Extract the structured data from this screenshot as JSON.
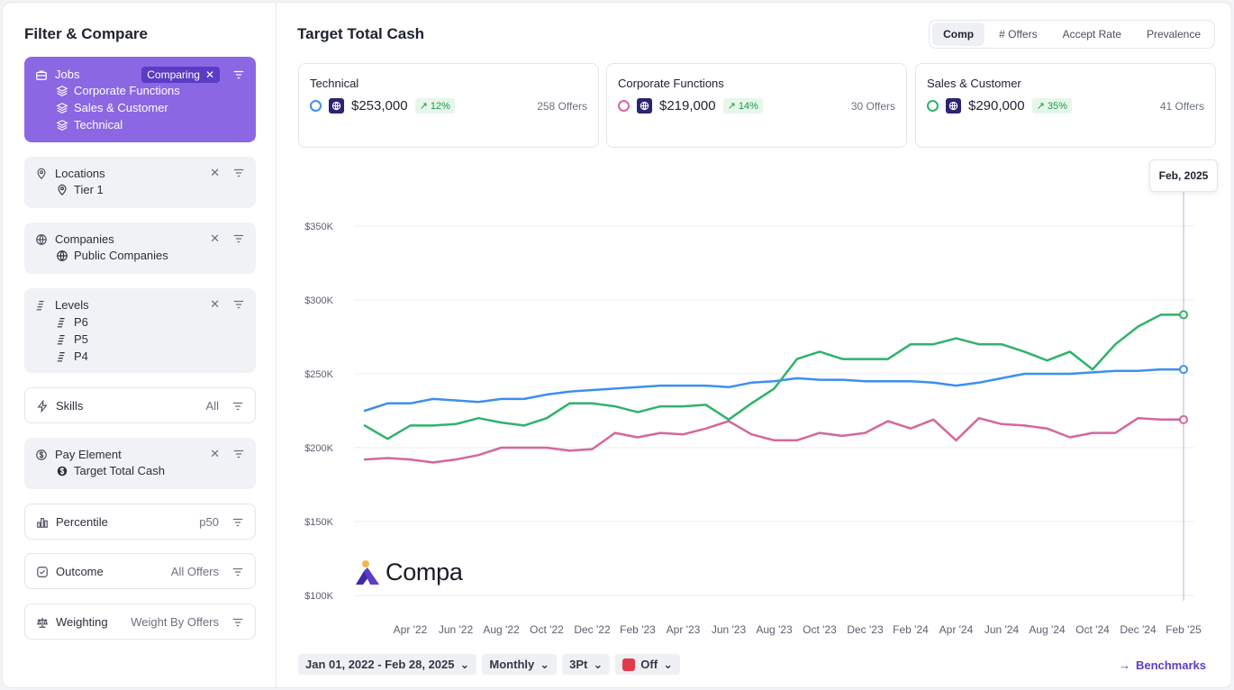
{
  "sidebar": {
    "title": "Filter & Compare",
    "jobs": {
      "label": "Jobs",
      "chip": "Comparing",
      "items": [
        "Corporate Functions",
        "Sales & Customer",
        "Technical"
      ]
    },
    "locations": {
      "label": "Locations",
      "items": [
        "Tier 1"
      ]
    },
    "companies": {
      "label": "Companies",
      "items": [
        "Public Companies"
      ]
    },
    "levels": {
      "label": "Levels",
      "items": [
        "P6",
        "P5",
        "P4"
      ]
    },
    "skills": {
      "label": "Skills",
      "value": "All"
    },
    "pay_element": {
      "label": "Pay Element",
      "items": [
        "Target Total Cash"
      ]
    },
    "percentile": {
      "label": "Percentile",
      "value": "p50"
    },
    "outcome": {
      "label": "Outcome",
      "value": "All Offers"
    },
    "weighting": {
      "label": "Weighting",
      "value": "Weight By Offers"
    }
  },
  "main": {
    "title": "Target Total Cash",
    "tabs": [
      "Comp",
      "# Offers",
      "Accept Rate",
      "Prevalence"
    ],
    "selected_tab": "Comp",
    "cards": [
      {
        "name": "Technical",
        "amount": "$253,000",
        "change": "↗ 12%",
        "offers": "258 Offers",
        "color": "#3c8ff0"
      },
      {
        "name": "Corporate Functions",
        "amount": "$219,000",
        "change": "↗ 14%",
        "offers": "30 Offers",
        "color": "#d5679b"
      },
      {
        "name": "Sales & Customer",
        "amount": "$290,000",
        "change": "↗ 35%",
        "offers": "41 Offers",
        "color": "#2fb36a"
      }
    ],
    "tooltip": "Feb, 2025",
    "logo": "Compa",
    "toolbar": {
      "date_range": "Jan 01, 2022 - Feb 28, 2025",
      "interval": "Monthly",
      "smoothing": "3Pt",
      "toggle": "Off"
    },
    "benchmarks_link": "Benchmarks"
  },
  "chart_data": {
    "type": "line",
    "ylim": [
      100000,
      350000
    ],
    "yticks": [
      "$100K",
      "$150K",
      "$200K",
      "$250K",
      "$300K",
      "$350K"
    ],
    "xticks": [
      "Apr '22",
      "Jun '22",
      "Aug '22",
      "Oct '22",
      "Dec '22",
      "Feb '23",
      "Apr '23",
      "Jun '23",
      "Aug '23",
      "Oct '23",
      "Dec '23",
      "Feb '24",
      "Apr '24",
      "Jun '24",
      "Aug '24",
      "Oct '24",
      "Dec '24",
      "Feb '25"
    ],
    "x": [
      "2022-02",
      "2022-03",
      "2022-04",
      "2022-05",
      "2022-06",
      "2022-07",
      "2022-08",
      "2022-09",
      "2022-10",
      "2022-11",
      "2022-12",
      "2023-01",
      "2023-02",
      "2023-03",
      "2023-04",
      "2023-05",
      "2023-06",
      "2023-07",
      "2023-08",
      "2023-09",
      "2023-10",
      "2023-11",
      "2023-12",
      "2024-01",
      "2024-02",
      "2024-03",
      "2024-04",
      "2024-05",
      "2024-06",
      "2024-07",
      "2024-08",
      "2024-09",
      "2024-10",
      "2024-11",
      "2024-12",
      "2025-01",
      "2025-02"
    ],
    "series": [
      {
        "name": "Technical",
        "color": "#3c8ff0",
        "values": [
          225000,
          230000,
          230000,
          233000,
          232000,
          231000,
          233000,
          233000,
          236000,
          238000,
          239000,
          240000,
          241000,
          242000,
          242000,
          242000,
          241000,
          244000,
          245000,
          247000,
          246000,
          246000,
          245000,
          245000,
          245000,
          244000,
          242000,
          244000,
          247000,
          250000,
          250000,
          250000,
          251000,
          252000,
          252000,
          253000,
          253000
        ]
      },
      {
        "name": "Corporate Functions",
        "color": "#d5679b",
        "values": [
          192000,
          193000,
          192000,
          190000,
          192000,
          195000,
          200000,
          200000,
          200000,
          198000,
          199000,
          210000,
          207000,
          210000,
          209000,
          213000,
          218000,
          209000,
          205000,
          205000,
          210000,
          208000,
          210000,
          218000,
          213000,
          219000,
          205000,
          220000,
          216000,
          215000,
          213000,
          207000,
          210000,
          210000,
          220000,
          219000,
          219000
        ]
      },
      {
        "name": "Sales & Customer",
        "color": "#2fb36a",
        "values": [
          215000,
          206000,
          215000,
          215000,
          216000,
          220000,
          217000,
          215000,
          220000,
          230000,
          230000,
          228000,
          224000,
          228000,
          228000,
          229000,
          219000,
          230000,
          240000,
          260000,
          265000,
          260000,
          260000,
          260000,
          270000,
          270000,
          274000,
          270000,
          270000,
          265000,
          259000,
          265000,
          253000,
          270000,
          282000,
          290000,
          290000
        ]
      }
    ]
  }
}
